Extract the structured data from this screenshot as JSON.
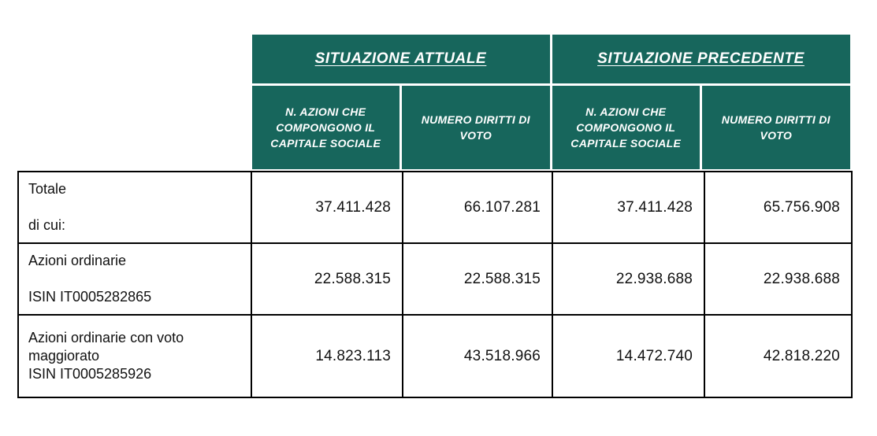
{
  "document": {
    "table": {
      "column_groups": [
        {
          "label": "SITUAZIONE ATTUALE"
        },
        {
          "label": "SITUAZIONE PRECEDENTE"
        }
      ],
      "sub_columns": [
        "N. AZIONI CHE COMPONGONO IL CAPITALE SOCIALE",
        "NUMERO DIRITTI DI VOTO",
        "N. AZIONI CHE COMPONGONO IL CAPITALE SOCIALE",
        "NUMERO DIRITTI DI VOTO"
      ],
      "rows": [
        {
          "label_line1": "Totale",
          "label_line2": "di cui:",
          "values": [
            "37.411.428",
            "66.107.281",
            "37.411.428",
            "65.756.908"
          ]
        },
        {
          "label_line1": "Azioni ordinarie",
          "label_line2": "ISIN IT0005282865",
          "values": [
            "22.588.315",
            "22.588.315",
            "22.938.688",
            "22.938.688"
          ]
        },
        {
          "label_line1": "Azioni ordinarie con voto maggiorato",
          "label_line2": "ISIN IT0005285926",
          "values": [
            "14.823.113",
            "43.518.966",
            "14.472.740",
            "42.818.220"
          ]
        }
      ]
    },
    "colors": {
      "header_bg": "#17665C",
      "header_text": "#FFFFFF",
      "border": "#000000",
      "body_text": "#111111"
    }
  }
}
